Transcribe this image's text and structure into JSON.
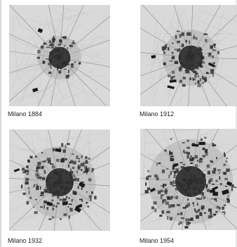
{
  "maps": [
    {
      "caption": "Milano 1884",
      "built_density": 0.2
    },
    {
      "caption": "Milano 1912",
      "built_density": 0.4
    },
    {
      "caption": "Milano 1932",
      "built_density": 0.65
    },
    {
      "caption": "Milano 1954",
      "built_density": 0.85
    }
  ],
  "colors": {
    "paper": "#d9d9d9",
    "built": "#2b2b2b",
    "roads": "#8a8a8a"
  }
}
